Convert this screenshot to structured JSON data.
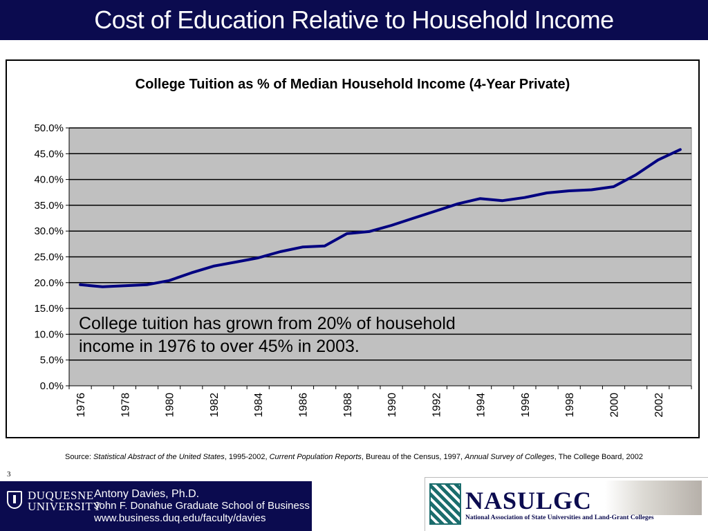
{
  "slide": {
    "title": "Cost of Education Relative to Household Income",
    "page_number": "3"
  },
  "source": {
    "prefix": "Source:  ",
    "ref1": "Statistical Abstract of the United States",
    "ref1_tail": ", 1995-2002, ",
    "ref2": "Current Population Reports",
    "ref2_tail": ", Bureau of the Census, 1997, ",
    "ref3": "Annual Survey of Colleges",
    "ref3_tail": ", The College Board, 2002"
  },
  "footer": {
    "university_line1": "DUQUESNE",
    "university_line2": "UNIVERSITY",
    "author": "Antony Davies, Ph.D.",
    "school": "John F. Donahue Graduate School of Business",
    "url": "www.business.duq.edu/faculty/davies",
    "partner_name": "NASULGC",
    "partner_full": "National Association of State Universities and Land-Grant Colleges"
  },
  "colors": {
    "title_bar": "#0b0b4f",
    "plot_bg": "#c0c0c0",
    "series": "#000080"
  },
  "chart_data": {
    "type": "line",
    "title": "College Tuition as % of Median Household Income (4-Year Private)",
    "xlabel": "",
    "ylabel": "",
    "x": [
      1976,
      1977,
      1978,
      1979,
      1980,
      1981,
      1982,
      1983,
      1984,
      1985,
      1986,
      1987,
      1988,
      1989,
      1990,
      1991,
      1992,
      1993,
      1994,
      1995,
      1996,
      1997,
      1998,
      1999,
      2000,
      2001,
      2002,
      2003
    ],
    "x_tick_labels": [
      "1976",
      "1978",
      "1980",
      "1982",
      "1984",
      "1986",
      "1988",
      "1990",
      "1992",
      "1994",
      "1996",
      "1998",
      "2000",
      "2002"
    ],
    "series": [
      {
        "values": [
          19.6,
          19.2,
          19.4,
          19.6,
          20.4,
          21.9,
          23.2,
          24.0,
          24.8,
          26.0,
          26.9,
          27.1,
          29.5,
          29.9,
          31.1,
          32.5,
          33.9,
          35.3,
          36.3,
          35.9,
          36.5,
          37.4,
          37.8,
          38.0,
          38.6,
          40.9,
          43.8,
          45.8
        ]
      }
    ],
    "ylim": [
      0,
      50
    ],
    "y_tick_labels": [
      "0.0%",
      "5.0%",
      "10.0%",
      "15.0%",
      "20.0%",
      "25.0%",
      "30.0%",
      "35.0%",
      "40.0%",
      "45.0%",
      "50.0%"
    ],
    "grid": true,
    "annotation_line1": "College tuition has grown from 20% of household",
    "annotation_line2": "income in 1976 to over 45% in 2003."
  }
}
